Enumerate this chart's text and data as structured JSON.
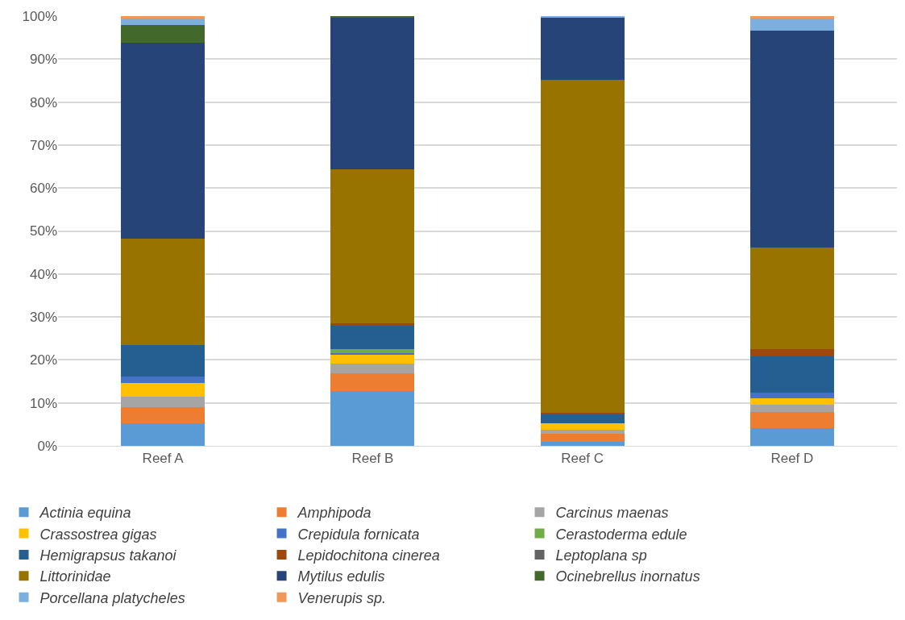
{
  "chart_data": {
    "type": "bar",
    "stacked": true,
    "categories": [
      "Reef A",
      "Reef B",
      "Reef C",
      "Reef D"
    ],
    "ylim": [
      0,
      100
    ],
    "yticks": [
      {
        "value": 0,
        "label": "0%"
      },
      {
        "value": 10,
        "label": "10%"
      },
      {
        "value": 20,
        "label": "20%"
      },
      {
        "value": 30,
        "label": "30%"
      },
      {
        "value": 40,
        "label": "40%"
      },
      {
        "value": 50,
        "label": "50%"
      },
      {
        "value": 60,
        "label": "60%"
      },
      {
        "value": 70,
        "label": "70%"
      },
      {
        "value": 80,
        "label": "80%"
      },
      {
        "value": 90,
        "label": "90%"
      },
      {
        "value": 100,
        "label": "100%"
      }
    ],
    "grid": "y",
    "legend": "bottom",
    "series": [
      {
        "name": "Actinia equina",
        "color": "#5b9bd5",
        "values": [
          5.3,
          12.8,
          1.0,
          4.1
        ]
      },
      {
        "name": "Amphipoda",
        "color": "#ed7d31",
        "values": [
          3.8,
          4.0,
          1.9,
          3.8
        ]
      },
      {
        "name": "Carcinus maenas",
        "color": "#a5a5a5",
        "values": [
          2.4,
          2.4,
          0.8,
          1.6
        ]
      },
      {
        "name": "Crassostrea gigas",
        "color": "#ffc000",
        "values": [
          3.2,
          2.0,
          1.6,
          1.5
        ]
      },
      {
        "name": "Crepidula fornicata",
        "color": "#4472c4",
        "values": [
          1.5,
          0.4,
          0,
          1.3
        ]
      },
      {
        "name": "Cerastoderma edule",
        "color": "#70ad47",
        "values": [
          0,
          1.0,
          0,
          0
        ]
      },
      {
        "name": "Hemigrapsus takanoi",
        "color": "#255e91",
        "values": [
          7.3,
          5.3,
          2.0,
          8.6
        ]
      },
      {
        "name": "Lepidochitona cinerea",
        "color": "#9e480e",
        "values": [
          0,
          0.7,
          0.4,
          1.6
        ]
      },
      {
        "name": "Leptoplana sp",
        "color": "#636363",
        "values": [
          0,
          0,
          0,
          0
        ]
      },
      {
        "name": "Littorinidae",
        "color": "#997300",
        "values": [
          24.7,
          35.8,
          77.4,
          23.7
        ]
      },
      {
        "name": "Mytilus edulis",
        "color": "#264478",
        "values": [
          45.7,
          35.4,
          14.7,
          50.5
        ]
      },
      {
        "name": "Ocinebrellus inornatus",
        "color": "#43682b",
        "values": [
          4.1,
          0.2,
          0,
          0
        ]
      },
      {
        "name": "Porcellana platycheles",
        "color": "#7cafdd",
        "values": [
          1.5,
          0,
          0.2,
          2.7
        ]
      },
      {
        "name": "Venerupis sp.",
        "color": "#f1975a",
        "values": [
          0.5,
          0,
          0,
          0.6
        ]
      }
    ]
  }
}
